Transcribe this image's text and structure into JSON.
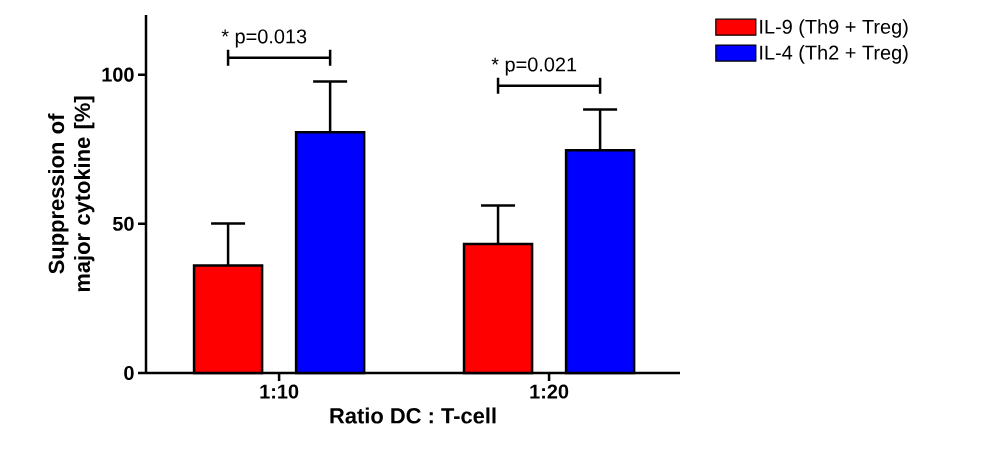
{
  "chart_data": {
    "type": "bar",
    "xlabel": "Ratio DC : T-cell",
    "ylabel": "Suppression of major cytokine [%]",
    "categories": [
      "1:10",
      "1:20"
    ],
    "series": [
      {
        "name": "IL-9 (Th9 + Treg)",
        "color": "#ff0000",
        "values": [
          36.0,
          43.2
        ],
        "errors": [
          [
            36.0,
            50.1
          ],
          [
            43.2,
            56.1
          ]
        ]
      },
      {
        "name": "IL-4 (Th2 + Treg)",
        "color": "#0000ff",
        "values": [
          80.7,
          74.7
        ],
        "errors": [
          [
            80.7,
            97.7
          ],
          [
            74.7,
            88.3
          ]
        ]
      }
    ],
    "ylim": [
      0,
      120
    ],
    "yticks": [
      0,
      50,
      100
    ],
    "grid": false,
    "legend": "top right",
    "annotations": [
      "* p=0.013",
      "* p=0.021"
    ]
  }
}
